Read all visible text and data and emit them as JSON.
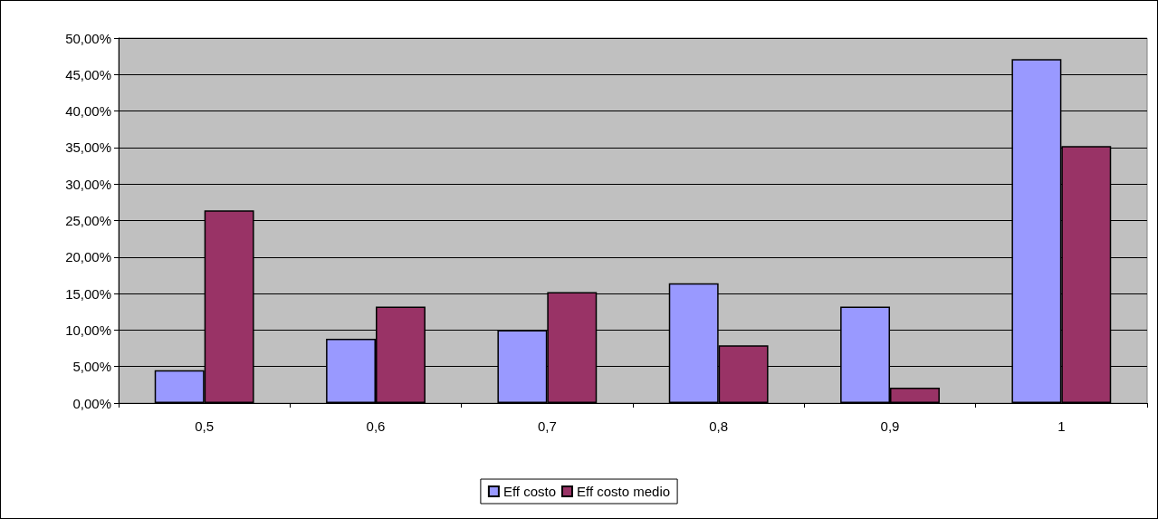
{
  "chart_data": {
    "type": "bar",
    "categories": [
      "0,5",
      "0,6",
      "0,7",
      "0,8",
      "0,9",
      "1"
    ],
    "series": [
      {
        "name": "Eff costo",
        "color": "#9999ff",
        "values": [
          4.5,
          8.8,
          10.0,
          16.4,
          13.2,
          47.1
        ]
      },
      {
        "name": "Eff costo medio",
        "color": "#993366",
        "values": [
          26.4,
          13.2,
          15.2,
          7.9,
          2.1,
          35.2
        ]
      }
    ],
    "ylim": [
      0,
      50
    ],
    "yticks": [
      {
        "value": 0,
        "label": "0,00%"
      },
      {
        "value": 5,
        "label": "5,00%"
      },
      {
        "value": 10,
        "label": "10,00%"
      },
      {
        "value": 15,
        "label": "15,00%"
      },
      {
        "value": 20,
        "label": "20,00%"
      },
      {
        "value": 25,
        "label": "25,00%"
      },
      {
        "value": 30,
        "label": "30,00%"
      },
      {
        "value": 35,
        "label": "35,00%"
      },
      {
        "value": 40,
        "label": "40,00%"
      },
      {
        "value": 45,
        "label": "45,00%"
      },
      {
        "value": 50,
        "label": "50,00%"
      }
    ],
    "grid": "y",
    "legend": "bottom"
  }
}
